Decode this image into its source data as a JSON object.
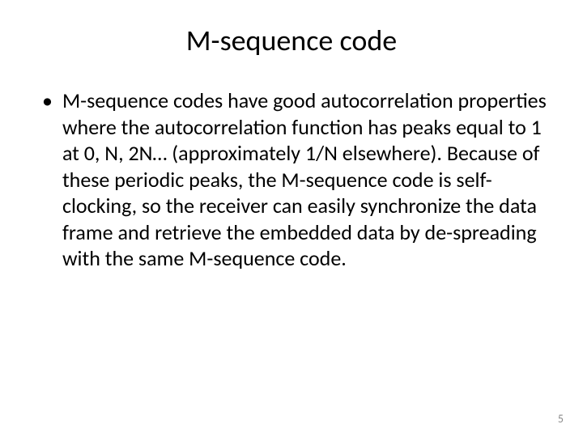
{
  "slide": {
    "title": "M-sequence code",
    "bullet": {
      "marker": "•",
      "text": "M-sequence codes have good autocorrelation properties where the autocorrelation function has peaks equal to 1 at 0, N, 2N… (approximately 1/N elsewhere). Because of these periodic peaks, the M-sequence code is self-clocking, so the receiver can easily synchronize the data frame and retrieve the embedded data by de-spreading with the same M-sequence code."
    },
    "page_number": "5"
  },
  "style": {
    "background_color": "#ffffff",
    "title_fontsize": 36,
    "title_color": "#000000",
    "body_fontsize": 26,
    "body_color": "#000000",
    "body_line_height": 1.25,
    "page_number_fontsize": 14,
    "page_number_color": "#8a8a8a",
    "font_family": "Calibri"
  }
}
